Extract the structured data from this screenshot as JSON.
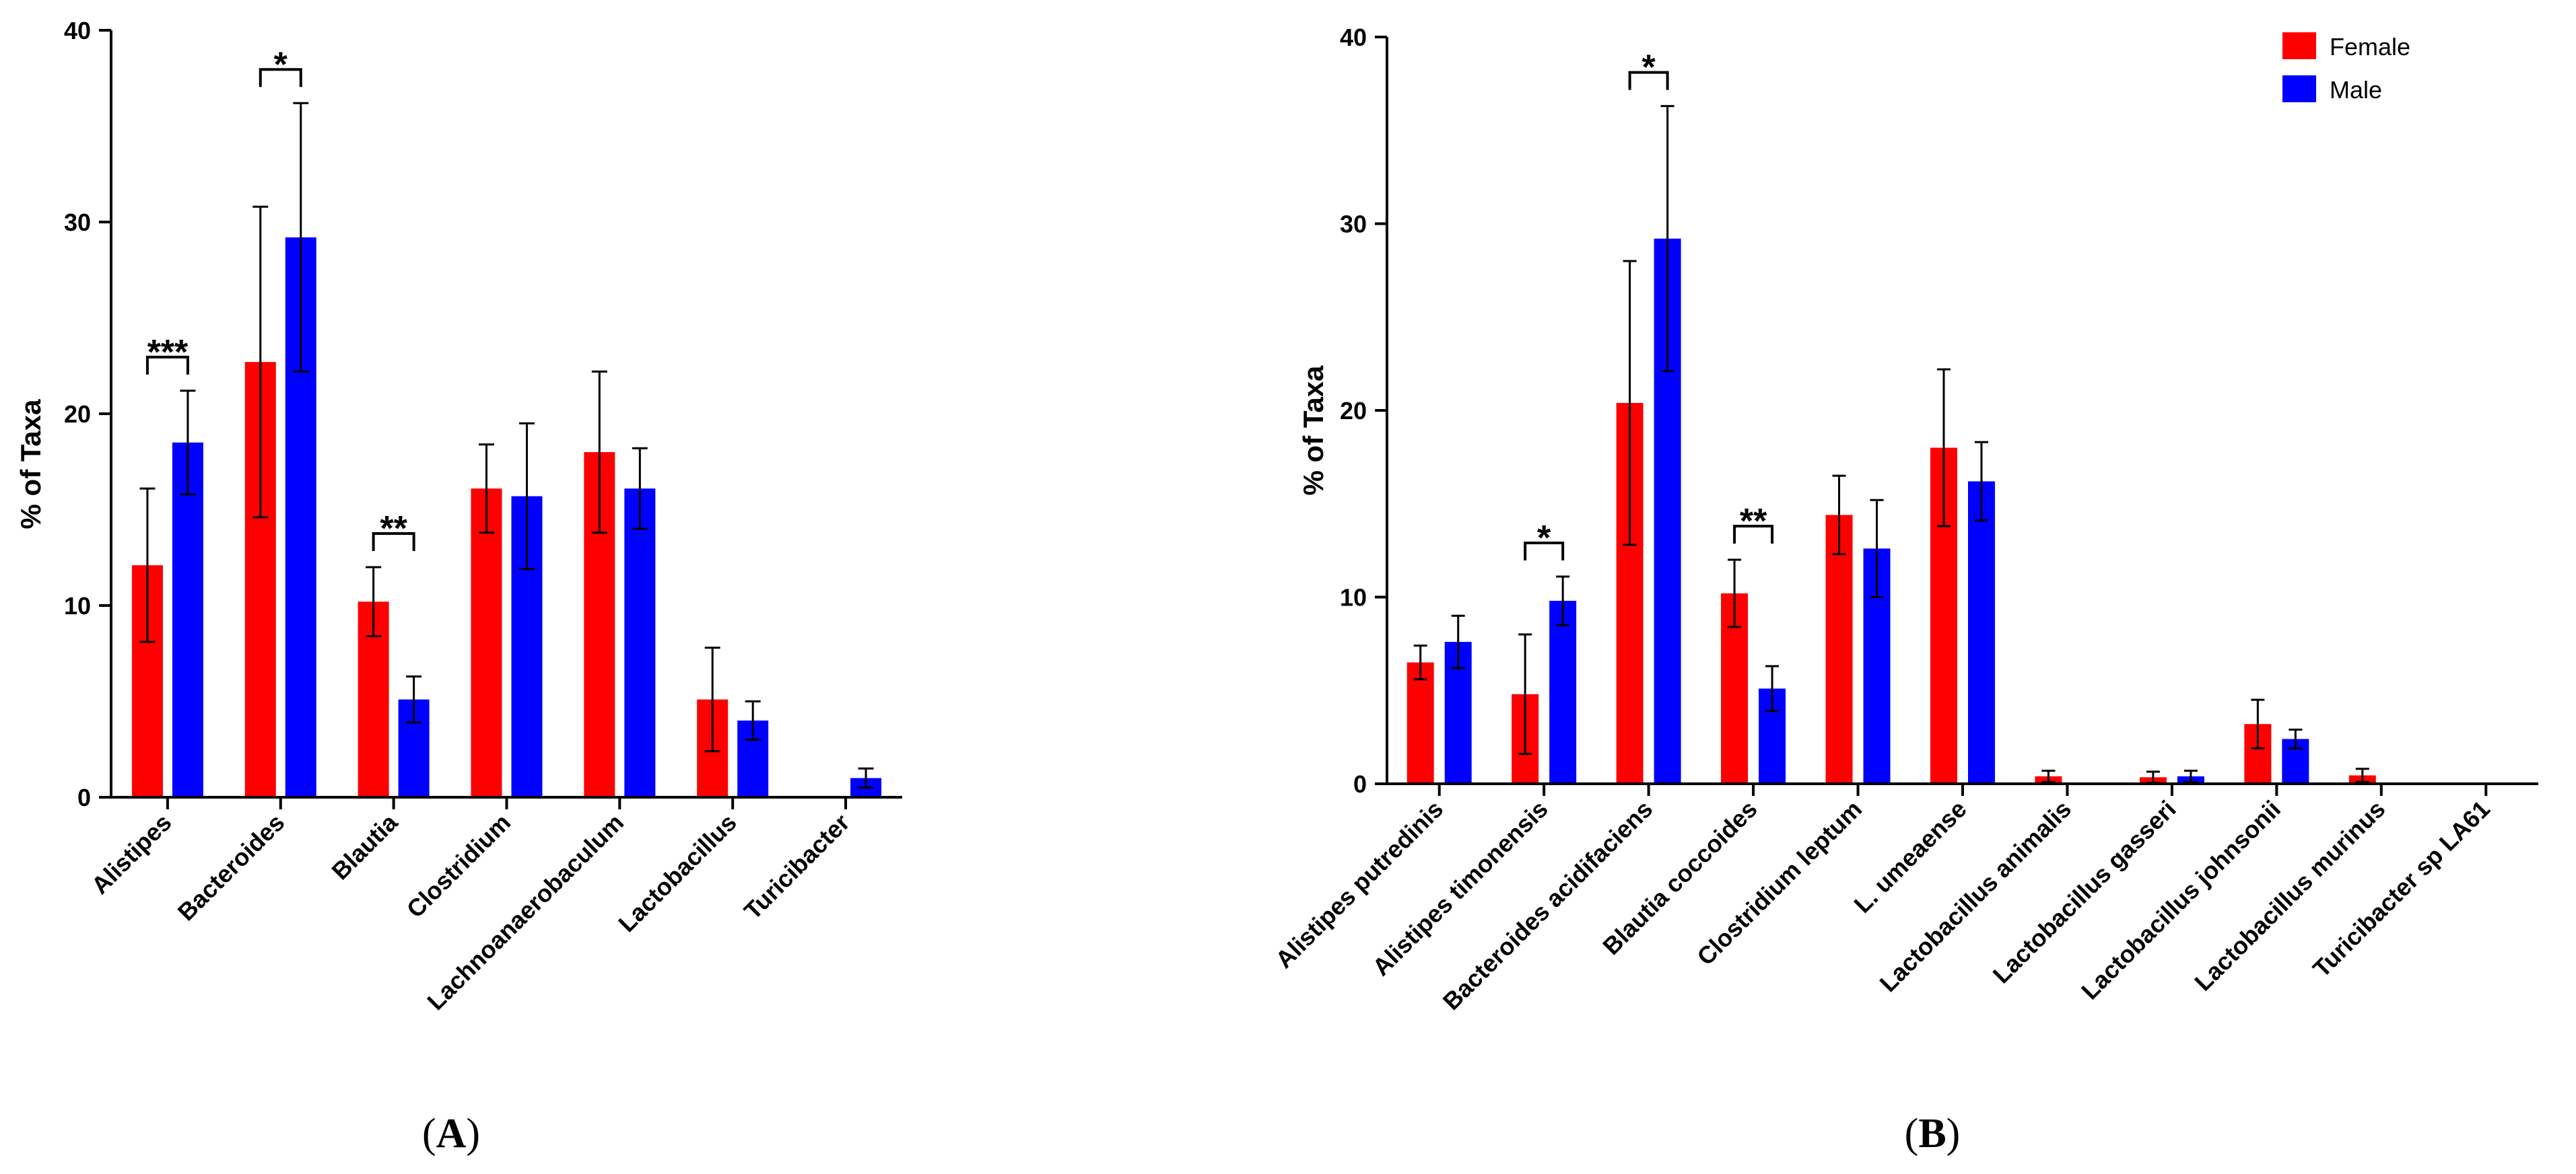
{
  "colors": {
    "female": "#ff0000",
    "male": "#0000ff"
  },
  "legend": {
    "position": "top-right",
    "female_label": "Female",
    "male_label": "Male"
  },
  "panels": {
    "A": {
      "paren_open": "(",
      "letter": "A",
      "paren_close": ")"
    },
    "B": {
      "paren_open": "(",
      "letter": "B",
      "paren_close": ")"
    }
  },
  "chart_data": [
    {
      "type": "bar",
      "panel": "A",
      "ylabel": "% of Taxa",
      "ylim": [
        0,
        40
      ],
      "yticks": [
        "0",
        "10",
        "20",
        "30",
        "40"
      ],
      "categories": [
        "Alistipes",
        "Bacteroides",
        "Blautia",
        "Clostridium",
        "Lachnoanaerobaculum",
        "Lactobacillus",
        "Turicibacter"
      ],
      "series": [
        {
          "name": "Female",
          "values": [
            12.1,
            22.7,
            10.2,
            16.1,
            18.0,
            5.1,
            0
          ],
          "errors": [
            4.0,
            8.1,
            1.8,
            2.3,
            4.2,
            2.7,
            0
          ]
        },
        {
          "name": "Male",
          "values": [
            18.5,
            29.2,
            5.1,
            15.7,
            16.1,
            4.0,
            1.0
          ],
          "errors": [
            2.7,
            7.0,
            1.2,
            3.8,
            2.1,
            1.0,
            0.5
          ]
        }
      ],
      "significance": [
        {
          "category": "Alistipes",
          "label": "***"
        },
        {
          "category": "Bacteroides",
          "label": "*"
        },
        {
          "category": "Blautia",
          "label": "**"
        }
      ]
    },
    {
      "type": "bar",
      "panel": "B",
      "ylabel": "% of Taxa",
      "ylim": [
        0,
        40
      ],
      "yticks": [
        "0",
        "10",
        "20",
        "30",
        "40"
      ],
      "categories": [
        "Alistipes putredinis",
        "Alistipes timonensis",
        "Bacteroides acidifaciens",
        "Blautia coccoides",
        "Clostridium leptum",
        "L. umeaense",
        "Lactobacillus animalis",
        "Lactobacillus gasseri",
        "Lactobacillus johnsonii",
        "Lactobacillus murinus",
        "Turicibacter sp LA61"
      ],
      "series": [
        {
          "name": "Female",
          "values": [
            6.5,
            4.8,
            20.4,
            10.2,
            14.4,
            18.0,
            0.4,
            0.35,
            3.2,
            0.45,
            0
          ],
          "errors": [
            0.9,
            3.2,
            7.6,
            1.8,
            2.1,
            4.2,
            0.3,
            0.3,
            1.3,
            0.35,
            0
          ]
        },
        {
          "name": "Male",
          "values": [
            7.6,
            9.8,
            29.2,
            5.1,
            12.6,
            16.2,
            0,
            0.4,
            2.4,
            0,
            0
          ],
          "errors": [
            1.4,
            1.3,
            7.1,
            1.2,
            2.6,
            2.1,
            0,
            0.3,
            0.5,
            0,
            0
          ]
        }
      ],
      "significance": [
        {
          "category": "Alistipes timonensis",
          "label": "*"
        },
        {
          "category": "Bacteroides acidifaciens",
          "label": "*"
        },
        {
          "category": "Blautia coccoides",
          "label": "**"
        }
      ]
    }
  ]
}
